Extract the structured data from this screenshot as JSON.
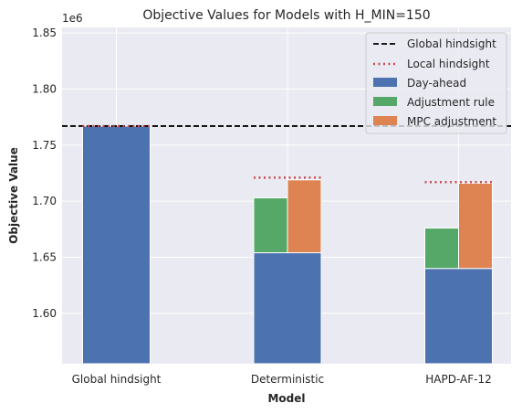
{
  "chart_data": {
    "type": "bar",
    "title": "Objective Values for Models with H_MIN=150",
    "xlabel": "Model",
    "ylabel": "Objective Value",
    "y_multiplier_label": "1e6",
    "y_scale": 1000000,
    "categories": [
      "Global hindsight",
      "Deterministic",
      "HAPD-AF-12"
    ],
    "y_ticks": [
      1.6,
      1.65,
      1.7,
      1.75,
      1.8,
      1.85
    ],
    "y_tick_labels": [
      "1.60",
      "1.65",
      "1.70",
      "1.75",
      "1.80",
      "1.85"
    ],
    "ylim": [
      1555000,
      1855000
    ],
    "grid": true,
    "legend_position": "top-right",
    "series": [
      {
        "name": "Day-ahead",
        "color": "#4C72B0",
        "values": [
          1767000,
          1654000,
          1640000
        ]
      },
      {
        "name": "Adjustment rule",
        "color": "#55A868",
        "base": [
          null,
          1654000,
          1640000
        ],
        "values": [
          null,
          1703000,
          1676000
        ]
      },
      {
        "name": "MPC adjustment",
        "color": "#DD8452",
        "base": [
          null,
          1654000,
          1640000
        ],
        "values": [
          null,
          1719000,
          1716000
        ]
      }
    ],
    "reference_lines": [
      {
        "name": "Global hindsight",
        "style": "dashed",
        "color": "#000000",
        "value": 1767000
      },
      {
        "name": "Local hindsight",
        "style": "dotted",
        "color": "#C44E52",
        "values": [
          1767000,
          1721000,
          1717000
        ]
      }
    ],
    "legend": [
      "Global hindsight",
      "Local hindsight",
      "Day-ahead",
      "Adjustment rule",
      "MPC adjustment"
    ]
  }
}
